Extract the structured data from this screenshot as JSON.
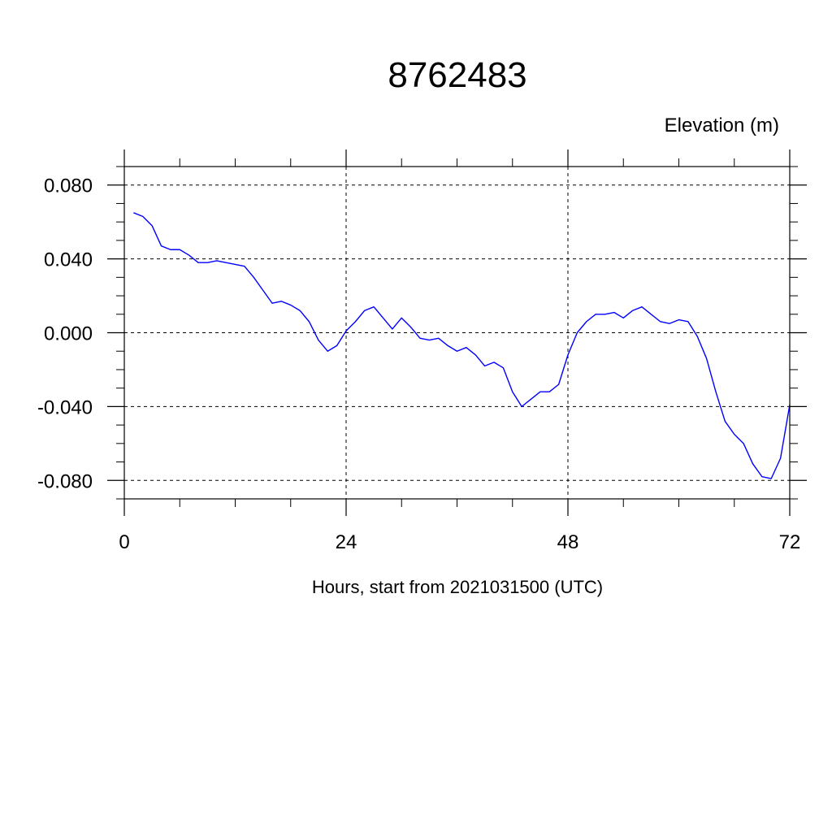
{
  "chart_data": {
    "type": "line",
    "title": "8762483",
    "ylabel": "Elevation (m)",
    "xlabel": "Hours, start from 2021031500 (UTC)",
    "xlim": [
      0,
      72
    ],
    "ylim": [
      -0.09,
      0.09
    ],
    "x_ticks": [
      0,
      24,
      48,
      72
    ],
    "x_tick_labels": [
      "0",
      "24",
      "48",
      "72"
    ],
    "y_ticks": [
      0.08,
      0.04,
      0.0,
      -0.04,
      -0.08
    ],
    "y_tick_labels": [
      "0.080",
      "0.040",
      "0.000",
      "-0.040",
      "-0.080"
    ],
    "grid": true,
    "series": [
      {
        "color": "#0000ff",
        "x": [
          1,
          2,
          3,
          4,
          5,
          6,
          7,
          8,
          9,
          10,
          11,
          12,
          13,
          14,
          15,
          16,
          17,
          18,
          19,
          20,
          21,
          22,
          23,
          24,
          25,
          26,
          27,
          28,
          29,
          30,
          31,
          32,
          33,
          34,
          35,
          36,
          37,
          38,
          39,
          40,
          41,
          42,
          43,
          44,
          45,
          46,
          47,
          48,
          49,
          50,
          51,
          52,
          53,
          54,
          55,
          56,
          57,
          58,
          59,
          60,
          61,
          62,
          63,
          64,
          65,
          66,
          67,
          68,
          69,
          70,
          71,
          72
        ],
        "values": [
          0.065,
          0.063,
          0.058,
          0.047,
          0.045,
          0.045,
          0.042,
          0.038,
          0.038,
          0.039,
          0.038,
          0.037,
          0.036,
          0.03,
          0.023,
          0.016,
          0.017,
          0.015,
          0.012,
          0.006,
          -0.004,
          -0.01,
          -0.007,
          0.001,
          0.006,
          0.012,
          0.014,
          0.008,
          0.002,
          0.008,
          0.003,
          -0.003,
          -0.004,
          -0.003,
          -0.007,
          -0.01,
          -0.008,
          -0.012,
          -0.018,
          -0.016,
          -0.019,
          -0.032,
          -0.04,
          -0.036,
          -0.032,
          -0.032,
          -0.028,
          -0.012,
          0.0,
          0.006,
          0.01,
          0.01,
          0.011,
          0.008,
          0.012,
          0.014,
          0.01,
          0.006,
          0.005,
          0.007,
          0.006,
          -0.002,
          -0.014,
          -0.032,
          -0.048,
          -0.055,
          -0.06,
          -0.071,
          -0.078,
          -0.079,
          -0.068,
          -0.039
        ]
      }
    ]
  }
}
